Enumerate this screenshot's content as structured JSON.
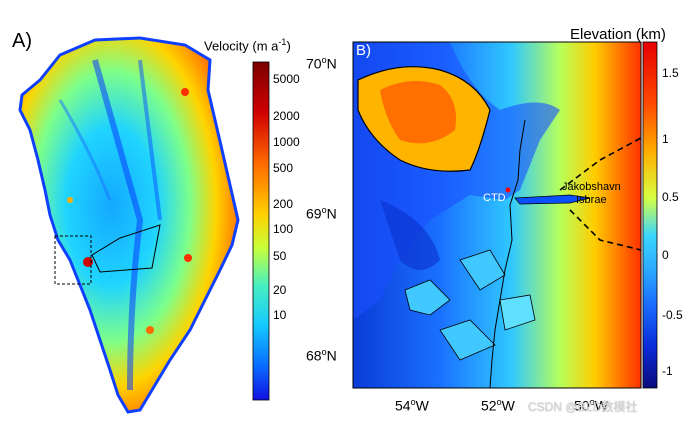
{
  "panelA": {
    "label": "A)",
    "colorbar": {
      "title": "Velocity (m a",
      "title_sup": "-1",
      "title_close": ")",
      "ticks": [
        "5000",
        "2000",
        "1000",
        "500",
        "200",
        "100",
        "50",
        "20",
        "10"
      ],
      "colors": [
        "#7a0000",
        "#d10000",
        "#ff3a00",
        "#ff8c00",
        "#ffd000",
        "#c8ff3a",
        "#6affa0",
        "#14d2ff",
        "#0a6bff",
        "#1010e0"
      ]
    }
  },
  "panelB": {
    "label": "B)",
    "colorbar": {
      "title": "Elevation (km)",
      "ticks": [
        "1.5",
        "1",
        "0.5",
        "0",
        "-0.5",
        "-1"
      ],
      "colors": [
        "#e60000",
        "#ff4a00",
        "#ff9a00",
        "#ffe000",
        "#9cff5a",
        "#3ad6ff",
        "#1a8cff",
        "#0a3cff",
        "#0a0a9c"
      ]
    },
    "lat_labels": [
      {
        "deg": "70",
        "hem": "N"
      },
      {
        "deg": "69",
        "hem": "N"
      },
      {
        "deg": "68",
        "hem": "N"
      }
    ],
    "lon_labels": [
      {
        "deg": "54",
        "hem": "W"
      },
      {
        "deg": "52",
        "hem": "W"
      },
      {
        "deg": "50",
        "hem": "W"
      }
    ],
    "annotations": {
      "ctd": "CTD",
      "glacier_line1": "Jakobshavn",
      "glacier_line2": "Isbrae"
    }
  },
  "watermark": "CSDN @BZD数模社"
}
